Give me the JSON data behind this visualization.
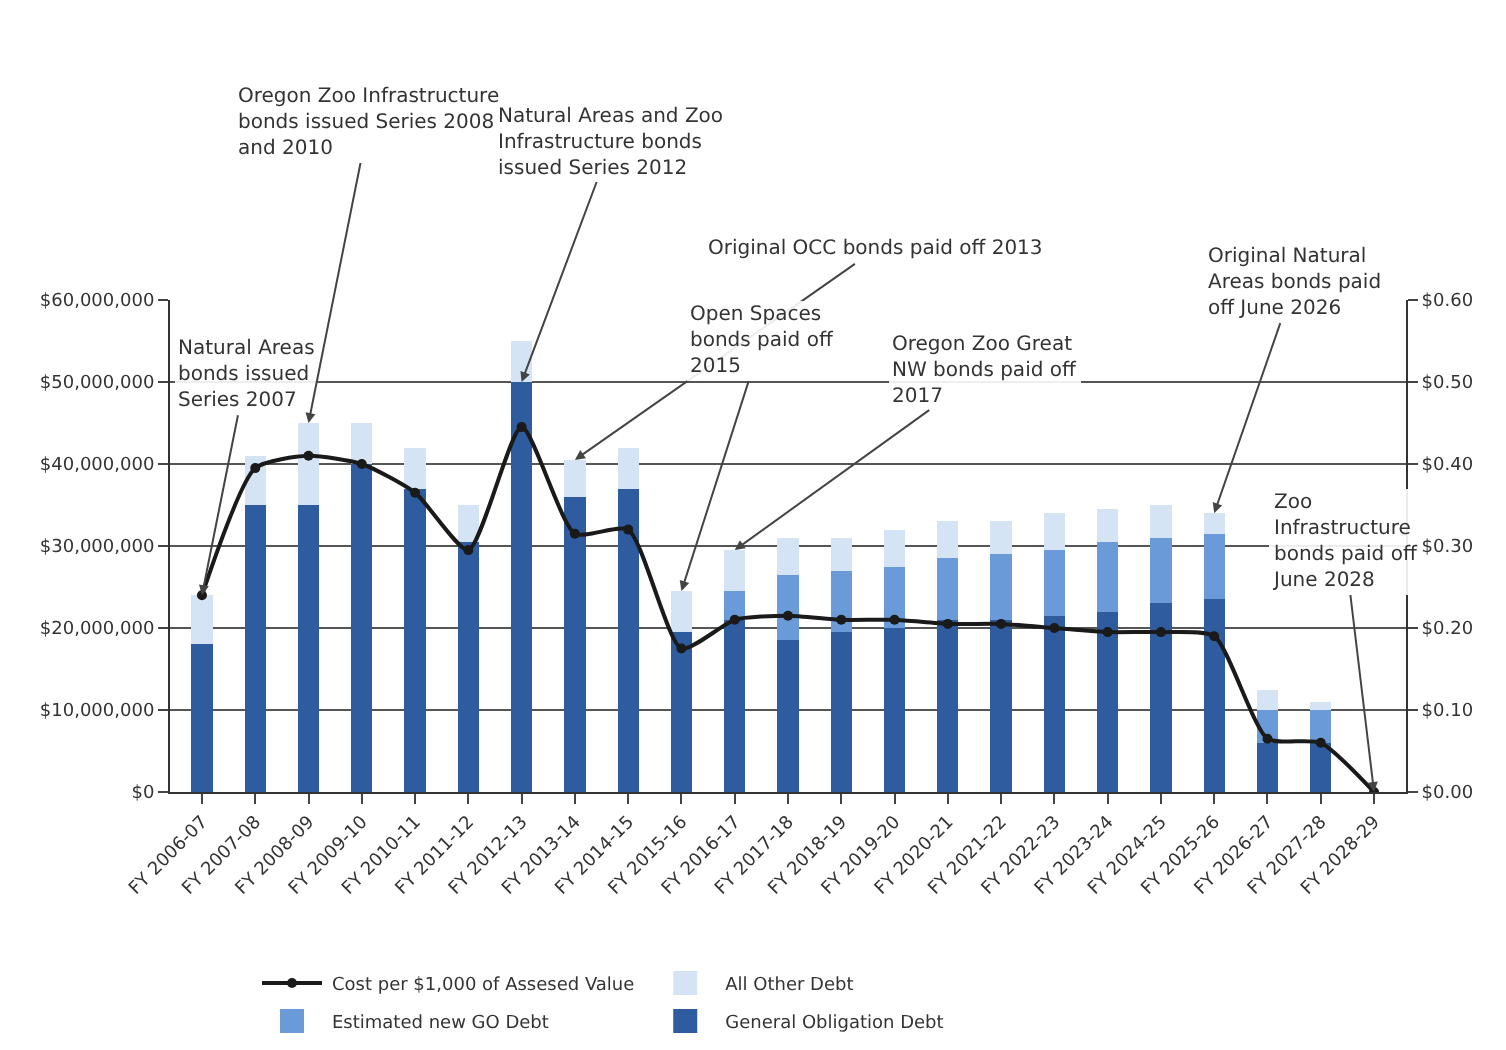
{
  "chart_data": {
    "type": "bar",
    "stacked": true,
    "categories": [
      "FY 2006-07",
      "FY 2007-08",
      "FY 2008-09",
      "FY 2009-10",
      "FY 2010-11",
      "FY 2011-12",
      "FY 2012-13",
      "FY 2013-14",
      "FY 2014-15",
      "FY 2015-16",
      "FY 2016-17",
      "FY 2017-18",
      "FY 2018-19",
      "FY 2019-20",
      "FY 2020-21",
      "FY 2021-22",
      "FY 2022-23",
      "FY 2023-24",
      "FY 2024-25",
      "FY 2025-26",
      "FY 2026-27",
      "FY 2027-28",
      "FY 2028-29"
    ],
    "series": [
      {
        "name": "General Obligation Debt",
        "color": "#2e5c9e",
        "values": [
          18000000,
          35000000,
          35000000,
          40000000,
          37000000,
          30500000,
          50000000,
          36000000,
          37000000,
          19500000,
          21000000,
          18500000,
          19500000,
          20000000,
          21000000,
          21000000,
          21500000,
          22000000,
          23000000,
          23500000,
          6000000,
          6000000,
          0
        ]
      },
      {
        "name": "Estimated new GO Debt",
        "color": "#6a9bd8",
        "values": [
          0,
          0,
          0,
          0,
          0,
          0,
          0,
          0,
          0,
          0,
          3500000,
          8000000,
          7500000,
          7500000,
          7500000,
          8000000,
          8000000,
          8500000,
          8000000,
          8000000,
          4000000,
          4000000,
          0
        ]
      },
      {
        "name": "All Other Debt",
        "color": "#d5e4f5",
        "values": [
          6000000,
          6000000,
          10000000,
          5000000,
          5000000,
          4500000,
          5000000,
          4500000,
          5000000,
          5000000,
          5000000,
          4500000,
          4000000,
          4500000,
          4500000,
          4000000,
          4500000,
          4000000,
          4000000,
          2500000,
          2500000,
          1000000,
          0
        ]
      },
      {
        "name": "Cost per $1,000 of Assesed Value",
        "type": "line",
        "axis": "y2",
        "color": "#1a1a1a",
        "values": [
          0.24,
          0.395,
          0.41,
          0.4,
          0.365,
          0.295,
          0.445,
          0.315,
          0.32,
          0.175,
          0.21,
          0.215,
          0.21,
          0.21,
          0.205,
          0.205,
          0.2,
          0.195,
          0.195,
          0.19,
          0.065,
          0.06,
          0.0
        ]
      }
    ],
    "ylim": [
      0,
      60000000
    ],
    "yticks": [
      {
        "value": 0,
        "label": "$0"
      },
      {
        "value": 10000000,
        "label": "$10,000,000"
      },
      {
        "value": 20000000,
        "label": "$20,000,000"
      },
      {
        "value": 30000000,
        "label": "$30,000,000"
      },
      {
        "value": 40000000,
        "label": "$40,000,000"
      },
      {
        "value": 50000000,
        "label": "$50,000,000"
      },
      {
        "value": 60000000,
        "label": "$60,000,000"
      }
    ],
    "y2lim": [
      0,
      0.6
    ],
    "y2ticks": [
      {
        "value": 0,
        "label": "$0.00"
      },
      {
        "value": 0.1,
        "label": "$0.10"
      },
      {
        "value": 0.2,
        "label": "$0.20"
      },
      {
        "value": 0.3,
        "label": "$0.30"
      },
      {
        "value": 0.4,
        "label": "$0.40"
      },
      {
        "value": 0.5,
        "label": "$0.50"
      },
      {
        "value": 0.6,
        "label": "$0.60"
      }
    ],
    "grid": "y",
    "legend": "bottom",
    "marker": "circle",
    "line_style": "solid",
    "annotations": [
      {
        "text": "Natural Areas bonds issued Series 2007",
        "x": "FY 2006-07",
        "y": 24000000
      },
      {
        "text": "Oregon Zoo Infrastructure bonds issued Series 2008 and 2010",
        "x": "FY 2008-09",
        "y": 45000000
      },
      {
        "text": "Natural Areas and Zoo Infrastructure bonds issued Series 2012",
        "x": "FY 2012-13",
        "y": 50000000
      },
      {
        "text": "Original OCC bonds paid off 2013",
        "x": "FY 2013-14",
        "y": 40500000
      },
      {
        "text": "Open Spaces bonds paid off 2015",
        "x": "FY 2015-16",
        "y": 24500000
      },
      {
        "text": "Oregon Zoo Great NW bonds paid off 2017",
        "x": "FY 2016-17",
        "y": 29500000
      },
      {
        "text": "Original Natural Areas bonds paid off June 2026",
        "x": "FY 2025-26",
        "y": 34000000
      },
      {
        "text": "Zoo Infrastructure bonds paid off June 2028",
        "x": "FY 2028-29",
        "y": 0
      }
    ]
  }
}
